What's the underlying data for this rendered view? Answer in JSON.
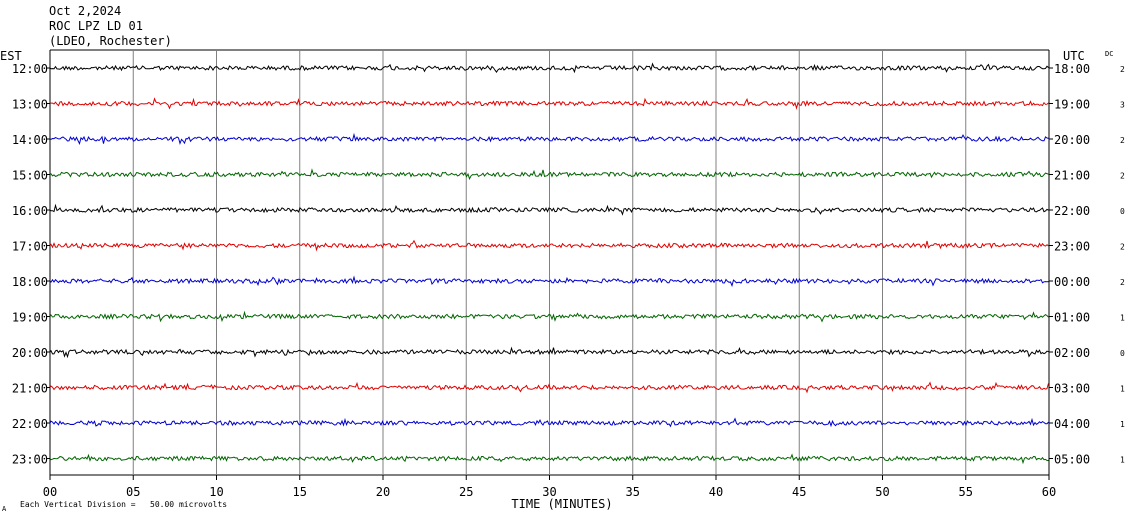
{
  "header": {
    "date": "Oct 2,2024",
    "station": "ROC LPZ LD 01",
    "network": "(LDEO, Rochester)"
  },
  "left_zone_label": "EST",
  "right_zone_label": "UTC",
  "dc_label": "DC",
  "footer": {
    "corner_mark": "A",
    "scale_note": "Each Vertical Division =   50.00 microvolts"
  },
  "colors": {
    "trace_cycle": [
      "#000000",
      "#e00000",
      "#0000d0",
      "#006400"
    ],
    "gridline": "#808080",
    "frame": "#000000"
  },
  "chart_data": {
    "type": "line",
    "title": "",
    "xlabel": "TIME (MINUTES)",
    "ylabel": "",
    "xlim": [
      0,
      60
    ],
    "x_ticks": [
      "00",
      "05",
      "10",
      "15",
      "20",
      "25",
      "30",
      "35",
      "40",
      "45",
      "50",
      "55",
      "60"
    ],
    "grid": true,
    "rows": [
      {
        "est": "12:00",
        "utc": "18:00",
        "dc": "2"
      },
      {
        "est": "13:00",
        "utc": "19:00",
        "dc": "3"
      },
      {
        "est": "14:00",
        "utc": "20:00",
        "dc": "2"
      },
      {
        "est": "15:00",
        "utc": "21:00",
        "dc": "2"
      },
      {
        "est": "16:00",
        "utc": "22:00",
        "dc": "0"
      },
      {
        "est": "17:00",
        "utc": "23:00",
        "dc": "2"
      },
      {
        "est": "18:00",
        "utc": "00:00",
        "dc": "2"
      },
      {
        "est": "19:00",
        "utc": "01:00",
        "dc": "1"
      },
      {
        "est": "20:00",
        "utc": "02:00",
        "dc": "0"
      },
      {
        "est": "21:00",
        "utc": "03:00",
        "dc": "1"
      },
      {
        "est": "22:00",
        "utc": "04:00",
        "dc": "1"
      },
      {
        "est": "23:00",
        "utc": "05:00",
        "dc": "1"
      }
    ]
  }
}
